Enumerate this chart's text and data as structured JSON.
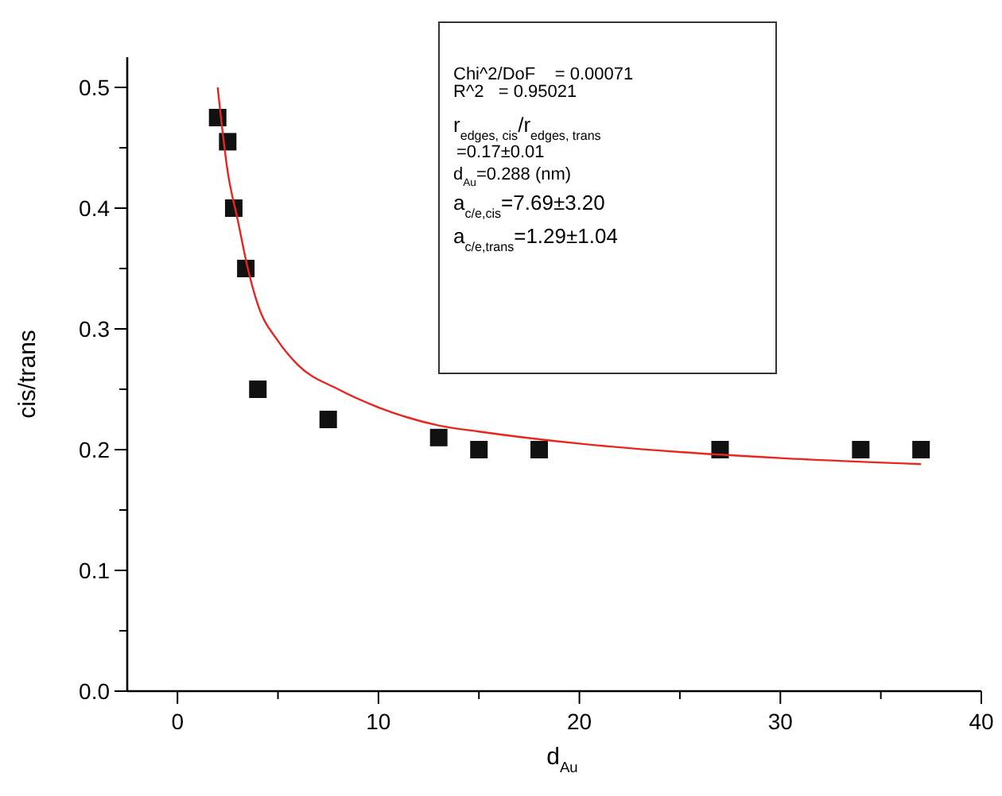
{
  "chart_data": {
    "type": "scatter",
    "xlabel": "d$_{Au}$",
    "ylabel": "cis/trans",
    "xlim": [
      -2.5,
      40
    ],
    "ylim": [
      0,
      0.525
    ],
    "xticks": [
      0,
      {
        "value": 5,
        "label": null
      },
      10,
      {
        "value": 15,
        "label": null
      },
      20,
      {
        "value": 25,
        "label": null
      },
      30,
      {
        "value": 35,
        "label": null
      },
      40
    ],
    "yticks": [
      {
        "value": 0,
        "label": "0.0"
      },
      {
        "value": 0.05,
        "label": null
      },
      0.1,
      {
        "value": 0.15,
        "label": null
      },
      0.2,
      {
        "value": 0.25,
        "label": null
      },
      0.3,
      {
        "value": 0.35,
        "label": null
      },
      0.4,
      {
        "value": 0.45,
        "label": null
      },
      0.5
    ],
    "grid": false,
    "series": [
      {
        "color": "#111111",
        "marker": "square",
        "x": [
          2,
          2.5,
          2.8,
          3.4,
          4,
          7.5,
          13,
          15,
          18,
          27,
          34,
          37
        ],
        "values": [
          0.475,
          0.455,
          0.4,
          0.35,
          0.25,
          0.225,
          0.21,
          0.2,
          0.2,
          0.2,
          0.2,
          0.2
        ]
      },
      {
        "type": "line",
        "color": "#e8251f",
        "marker": "none",
        "line_style": "solid",
        "x": [
          2,
          2.5,
          3,
          3.5,
          4,
          5,
          6,
          8,
          10,
          13,
          15,
          20,
          25,
          30,
          37
        ],
        "values": [
          0.5,
          0.43,
          0.39,
          0.35,
          0.32,
          0.29,
          0.27,
          0.25,
          0.235,
          0.22,
          0.215,
          0.205,
          0.198,
          0.193,
          0.188
        ]
      }
    ],
    "annotations": [
      "Chi^2/DoF    = 0.00071",
      "R^2   = 0.95021",
      "r$_{edges, cis}$/r$_{edges, trans}$",
      "=0.17±0.01",
      "d$_{Au}$=0.288 (nm)",
      "a$_{c/e,cis}$=7.69±3.20",
      "a$_{c/e,trans}$=1.29±1.04"
    ]
  }
}
